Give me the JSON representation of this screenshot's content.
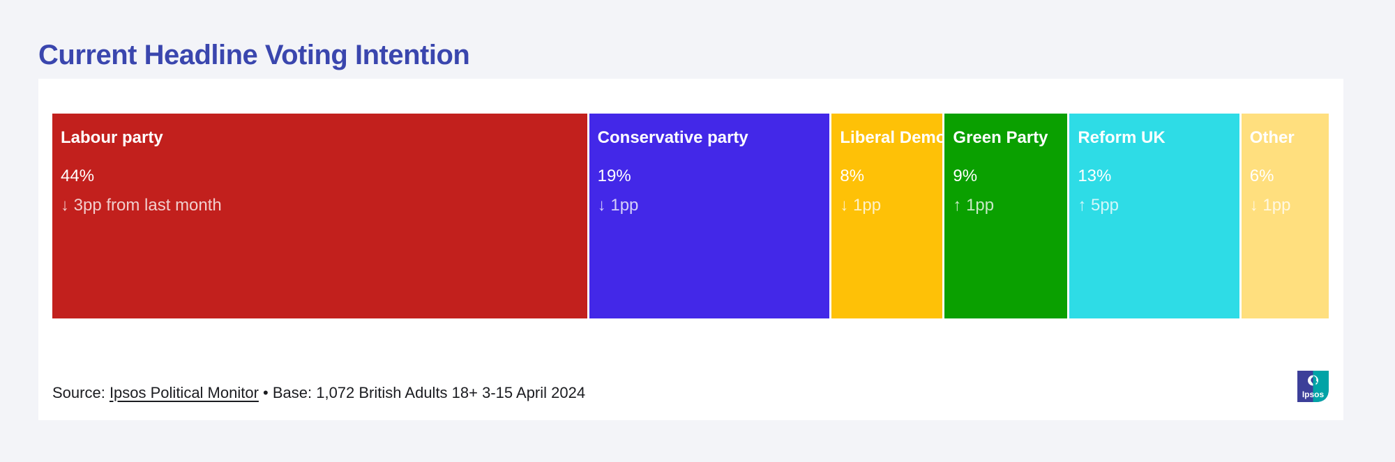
{
  "page": {
    "title": "Current Headline Voting Intention"
  },
  "chart_data": {
    "type": "bar",
    "variant": "single horizontal stacked bar (treemap-style strip), segment width proportional to value",
    "title": "Current Headline Voting Intention",
    "unit": "%",
    "categories": [
      "Labour party",
      "Conservative party",
      "Liberal Democrats",
      "Green Party",
      "Reform UK",
      "Other"
    ],
    "values": [
      44,
      19,
      8,
      9,
      13,
      6
    ],
    "segments": [
      {
        "label": "Labour party",
        "value": 44,
        "value_label": "44%",
        "change": "↓ 3pp from last month",
        "color": "#c2201d"
      },
      {
        "label": "Conservative party",
        "value": 19,
        "value_label": "19%",
        "change": "↓ 1pp",
        "color": "#4328e8"
      },
      {
        "label": "Liberal Democrats",
        "value": 8,
        "value_label": "8%",
        "change": "↓ 1pp",
        "color": "#fec107"
      },
      {
        "label": "Green Party",
        "value": 9,
        "value_label": "9%",
        "change": "↑ 1pp",
        "color": "#0aa000"
      },
      {
        "label": "Reform UK",
        "value": 13,
        "value_label": "13%",
        "change": "↑ 5pp",
        "color": "#2edce6"
      },
      {
        "label": "Other",
        "value": 6,
        "value_label": "6%",
        "change": "↓ 1pp",
        "color": "#ffdf7e"
      }
    ],
    "legend": "none",
    "axes": "none",
    "text_color_on_bars": "#ffffff"
  },
  "footer": {
    "source_prefix": "Source: ",
    "source_link": "Ipsos Political Monitor",
    "source_suffix": " • Base: 1,072 British Adults 18+ 3-15 April 2024",
    "logo_text": "Ipsos"
  },
  "colors": {
    "page_background": "#f3f4f8",
    "card_background": "#ffffff",
    "title": "#3a46ae",
    "logo_navy": "#3c3f99",
    "logo_teal": "#00a3a6"
  }
}
